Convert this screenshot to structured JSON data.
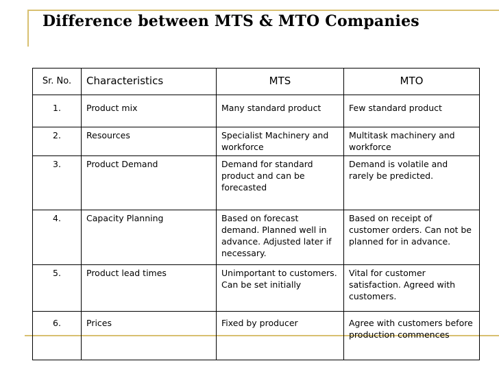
{
  "title": "Difference between MTS & MTO Companies",
  "colors": {
    "accent_rule": "#d8c070"
  },
  "table": {
    "headers": [
      "Sr. No.",
      "Characteristics",
      "MTS",
      "MTO"
    ],
    "rows": [
      {
        "no": "1.",
        "characteristic": "Product mix",
        "mts": "Many standard product",
        "mto": "Few standard product"
      },
      {
        "no": "2.",
        "characteristic": "Resources",
        "mts": "Specialist Machinery and workforce",
        "mto": "Multitask machinery and workforce"
      },
      {
        "no": "3.",
        "characteristic": "Product Demand",
        "mts": "Demand for standard product and can be forecasted",
        "mto": "Demand is volatile and rarely be predicted."
      },
      {
        "no": "4.",
        "characteristic": "Capacity Planning",
        "mts": "Based on forecast demand. Planned well in advance.  Adjusted later if necessary.",
        "mto": "Based on receipt of customer orders.  Can not be planned for in advance."
      },
      {
        "no": "5.",
        "characteristic": "Product lead times",
        "mts": "Unimportant to customers. Can be set initially",
        "mto": "Vital for customer satisfaction. Agreed with customers."
      },
      {
        "no": "6.",
        "characteristic": "Prices",
        "mts": "Fixed by producer",
        "mto": "Agree with customers before production commences"
      }
    ]
  }
}
